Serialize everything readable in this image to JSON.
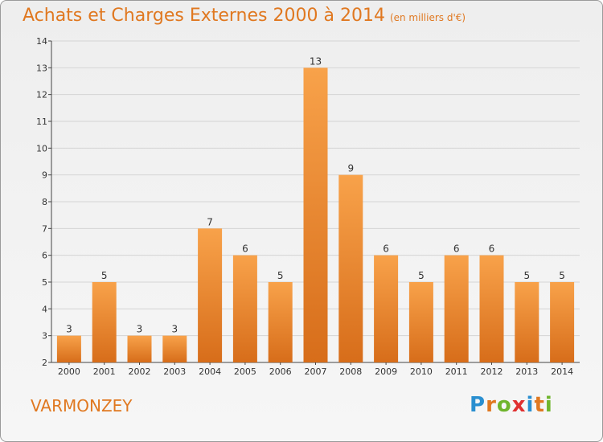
{
  "title": "Achats et Charges Externes 2000 à 2014",
  "unit": "(en milliers d'€)",
  "commune": "VARMONZEY",
  "logo": {
    "letters": [
      "P",
      "r",
      "o",
      "x",
      "i",
      "t",
      "i"
    ],
    "colors": [
      "#2a8fd0",
      "#e07820",
      "#6fb52c",
      "#e03030",
      "#2a8fd0",
      "#e07820",
      "#6fb52c"
    ]
  },
  "colors": {
    "bar_light": "#f8a24a",
    "bar_dark": "#d76d1a",
    "title": "#e07820"
  },
  "chart_data": {
    "type": "bar",
    "categories": [
      "2000",
      "2001",
      "2002",
      "2003",
      "2004",
      "2005",
      "2006",
      "2007",
      "2008",
      "2009",
      "2010",
      "2011",
      "2012",
      "2013",
      "2014"
    ],
    "values": [
      3,
      5,
      3,
      3,
      7,
      6,
      5,
      13,
      9,
      6,
      5,
      6,
      6,
      5,
      5
    ],
    "ylim": [
      2,
      14
    ],
    "yticks": [
      2,
      3,
      4,
      5,
      6,
      7,
      8,
      9,
      10,
      11,
      12,
      13,
      14
    ],
    "grid": true,
    "data_labels": true
  }
}
